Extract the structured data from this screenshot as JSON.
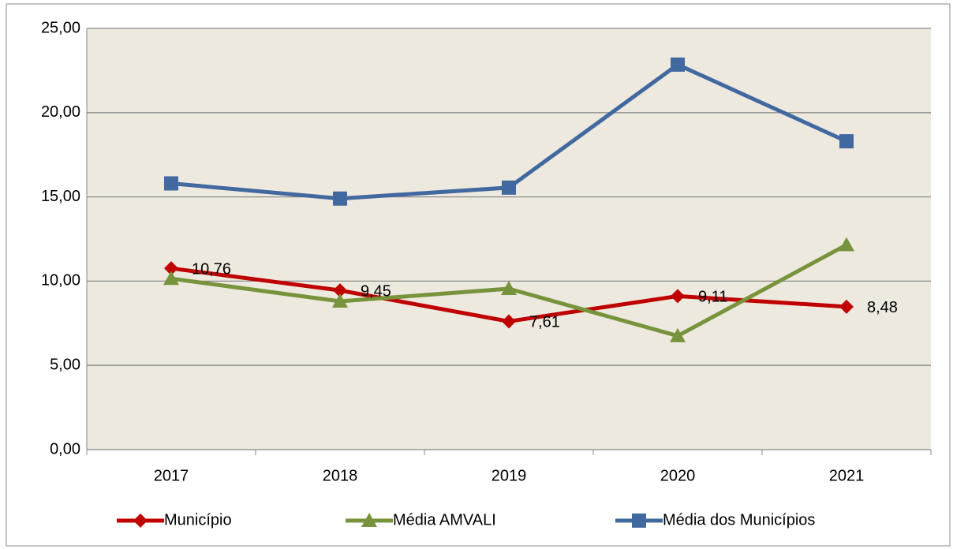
{
  "chart_data": {
    "type": "line",
    "categories": [
      "2017",
      "2018",
      "2019",
      "2020",
      "2021"
    ],
    "series": [
      {
        "name": "Município",
        "color": "#c00000",
        "marker": "diamond",
        "values": [
          10.76,
          9.45,
          7.61,
          9.11,
          8.48
        ],
        "value_labels": [
          "10,76",
          "9,45",
          "7,61",
          "9,11",
          "8,48"
        ]
      },
      {
        "name": "Média AMVALI",
        "color": "#77933c",
        "marker": "triangle",
        "values": [
          10.15,
          8.8,
          9.55,
          6.75,
          12.15
        ]
      },
      {
        "name": "Média dos Municípios",
        "color": "#41689f",
        "marker": "square",
        "values": [
          15.8,
          14.9,
          15.55,
          22.85,
          18.3
        ]
      }
    ],
    "ylim": [
      0,
      25
    ],
    "yticks": [
      {
        "value": 0,
        "label": "0,00"
      },
      {
        "value": 5,
        "label": "5,00"
      },
      {
        "value": 10,
        "label": "10,00"
      },
      {
        "value": 15,
        "label": "15,00"
      },
      {
        "value": 20,
        "label": "20,00"
      },
      {
        "value": 25,
        "label": "25,00"
      }
    ],
    "grid": true,
    "legend": "bottom"
  }
}
